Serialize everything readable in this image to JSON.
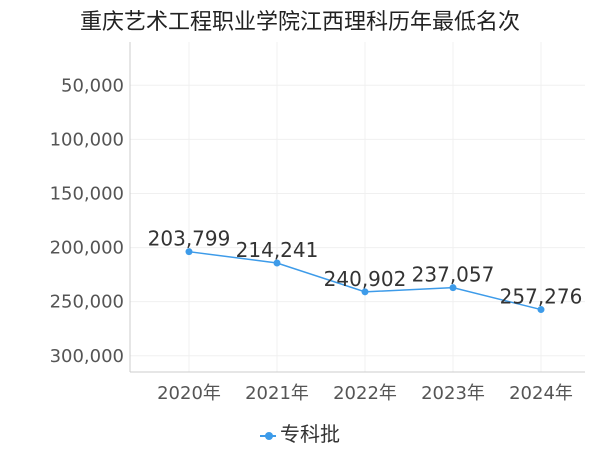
{
  "chart_data": {
    "type": "line",
    "title": "重庆艺术工程职业学院江西理科历年最低名次",
    "xlabel": "",
    "ylabel": "",
    "categories": [
      "2020年",
      "2021年",
      "2022年",
      "2023年",
      "2024年"
    ],
    "series": [
      {
        "name": "专科批",
        "values": [
          203799,
          214241,
          240902,
          237057,
          257276
        ],
        "labels": [
          "203,799",
          "214,241",
          "240,902",
          "237,057",
          "257,276"
        ]
      }
    ],
    "yticks": [
      {
        "value": 50000,
        "label": "50,000"
      },
      {
        "value": 100000,
        "label": "100,000"
      },
      {
        "value": 150000,
        "label": "150,000"
      },
      {
        "value": 200000,
        "label": "200,000"
      },
      {
        "value": 250000,
        "label": "250,000"
      },
      {
        "value": 300000,
        "label": "300,000"
      }
    ],
    "ylim": [
      10000,
      315000
    ],
    "y_inverted": true,
    "grid": true,
    "legend_position": "bottom",
    "series_color": "#3d9be9"
  }
}
